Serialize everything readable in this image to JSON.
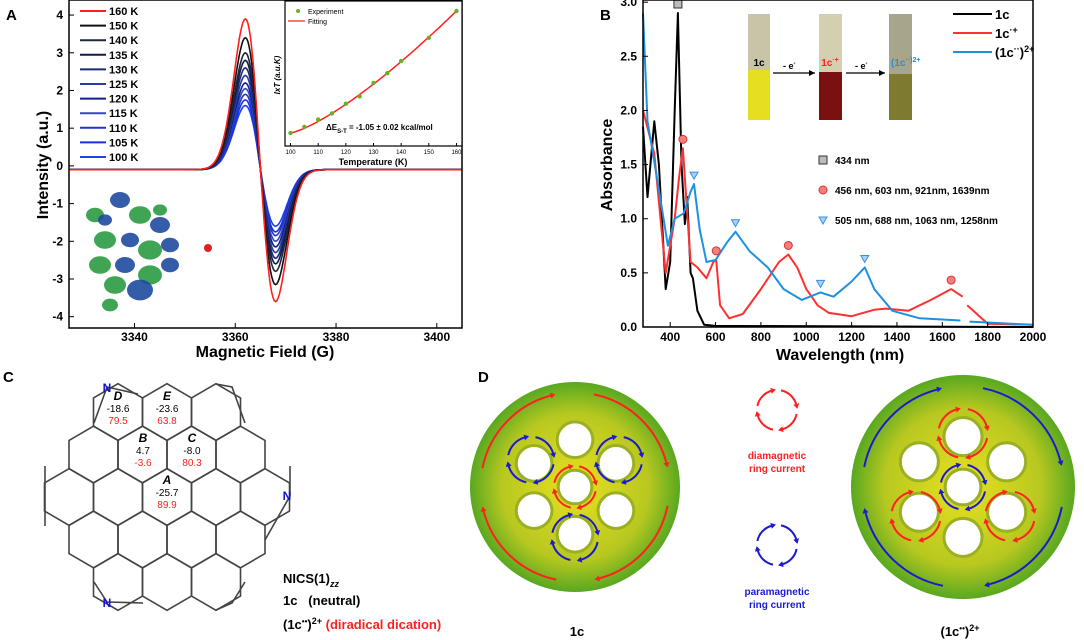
{
  "panels": {
    "a": "A",
    "b": "B",
    "c": "C",
    "d": "D"
  },
  "chart_data": [
    {
      "type": "line",
      "panel": "A",
      "xlabel": "Magnetic Field (G)",
      "ylabel": "Intensity (a.u.)",
      "xlim": [
        3327,
        3405
      ],
      "ylim": [
        -4.3,
        4.4
      ],
      "xticks": [
        3340,
        3360,
        3380,
        3400
      ],
      "yticks": [
        -4,
        -3,
        -2,
        -1,
        0,
        1,
        2,
        3,
        4
      ],
      "legend_position": "top-left",
      "center_field": 3365,
      "baseline": -0.1,
      "series": [
        {
          "name": "160 K",
          "peak": 3.9,
          "trough": -3.6,
          "color": "#ff2020"
        },
        {
          "name": "150 K",
          "peak": 3.4,
          "trough": -3.15,
          "color": "#101018"
        },
        {
          "name": "140 K",
          "peak": 3.0,
          "trough": -2.8,
          "color": "#22283a"
        },
        {
          "name": "135 K",
          "peak": 2.8,
          "trough": -2.6,
          "color": "#141a50"
        },
        {
          "name": "130 K",
          "peak": 2.6,
          "trough": -2.45,
          "color": "#1c2a78"
        },
        {
          "name": "125 K",
          "peak": 2.4,
          "trough": -2.3,
          "color": "#2a3c9a"
        },
        {
          "name": "120 K",
          "peak": 2.2,
          "trough": -2.15,
          "color": "#10208a"
        },
        {
          "name": "115 K",
          "peak": 2.05,
          "trough": -2.0,
          "color": "#3348c0"
        },
        {
          "name": "110 K",
          "peak": 1.9,
          "trough": -1.85,
          "color": "#2036c8"
        },
        {
          "name": "105 K",
          "peak": 1.75,
          "trough": -1.75,
          "color": "#1a30e0"
        },
        {
          "name": "100 K",
          "peak": 1.6,
          "trough": -1.6,
          "color": "#2040f0"
        }
      ]
    },
    {
      "type": "scatter",
      "panel": "A-inset",
      "xlabel": "Temperature (K)",
      "ylabel": "IxT (a.u.K)",
      "xlim": [
        98,
        162
      ],
      "xticks": [
        100,
        110,
        120,
        130,
        140,
        150,
        160
      ],
      "annotation": "ΔES-T = -1.05 ± 0.02 kcal/mol",
      "annotation_parts": {
        "delta": "ΔE",
        "sub": "S-T",
        "rest": " = -1.05 ± 0.02 kcal/mol"
      },
      "series": [
        {
          "name": "Experiment",
          "color": "#6ab023",
          "x": [
            100,
            105,
            110,
            115,
            120,
            125,
            130,
            135,
            140,
            150,
            160
          ],
          "y": [
            0,
            0.05,
            0.11,
            0.16,
            0.24,
            0.3,
            0.41,
            0.49,
            0.59,
            0.78,
            1.0
          ]
        },
        {
          "name": "Fitting",
          "color": "#ff2020"
        }
      ]
    },
    {
      "type": "line",
      "panel": "B",
      "xlabel": "Wavelength (nm)",
      "ylabel": "Absorbance",
      "xlim": [
        280,
        2000
      ],
      "ylim": [
        0,
        3.02
      ],
      "xticks": [
        400,
        600,
        800,
        1000,
        1200,
        1400,
        1600,
        1800,
        2000
      ],
      "yticks": [
        0.0,
        0.5,
        1.0,
        1.5,
        2.0,
        2.5,
        3.0
      ],
      "ytick_labels": [
        "0.0",
        "0.5",
        "1.0",
        "1.5",
        "2.0",
        "2.5",
        "3.0"
      ],
      "legend_position": "top-right",
      "series": [
        {
          "name": "1c",
          "color": "#000000",
          "marker": "square",
          "peaks": [
            434
          ],
          "peak_label": "434 nm",
          "points": [
            [
              280,
              1.85
            ],
            [
              300,
              1.2
            ],
            [
              330,
              1.9
            ],
            [
              350,
              1.5
            ],
            [
              380,
              0.35
            ],
            [
              400,
              0.6
            ],
            [
              420,
              2.0
            ],
            [
              434,
              2.9
            ],
            [
              450,
              1.5
            ],
            [
              465,
              0.95
            ],
            [
              475,
              1.2
            ],
            [
              490,
              0.5
            ],
            [
              500,
              0.45
            ],
            [
              520,
              0.15
            ],
            [
              550,
              0.02
            ],
            [
              600,
              0.01
            ],
            [
              2000,
              0.0
            ]
          ]
        },
        {
          "name": "1c·+",
          "color": "#ff3030",
          "marker": "circle",
          "peaks": [
            456,
            603,
            921,
            1639
          ],
          "peak_label": "456 nm, 603 nm, 921nm, 1639nm",
          "points": [
            [
              280,
              2.0
            ],
            [
              330,
              1.6
            ],
            [
              380,
              0.5
            ],
            [
              420,
              1.0
            ],
            [
              440,
              1.4
            ],
            [
              456,
              1.65
            ],
            [
              470,
              1.2
            ],
            [
              490,
              0.6
            ],
            [
              520,
              0.55
            ],
            [
              560,
              0.45
            ],
            [
              590,
              0.6
            ],
            [
              603,
              0.62
            ],
            [
              620,
              0.2
            ],
            [
              660,
              0.08
            ],
            [
              720,
              0.12
            ],
            [
              800,
              0.35
            ],
            [
              880,
              0.6
            ],
            [
              921,
              0.67
            ],
            [
              960,
              0.55
            ],
            [
              1000,
              0.35
            ],
            [
              1050,
              0.2
            ],
            [
              1100,
              0.13
            ],
            [
              1200,
              0.1
            ],
            [
              1300,
              0.16
            ],
            [
              1350,
              0.17
            ],
            [
              1450,
              0.15
            ],
            [
              1550,
              0.25
            ],
            [
              1639,
              0.35
            ],
            [
              1690,
              0.28
            ],
            null,
            [
              1710,
              0.2
            ],
            [
              1800,
              0.03
            ],
            [
              2000,
              0.02
            ]
          ]
        },
        {
          "name": "(1c··)2+",
          "color": "#1e90e0",
          "marker": "triangle",
          "peaks": [
            505,
            688,
            1063,
            1258
          ],
          "peak_label": "505 nm, 688 nm, 1063 nm, 1258nm",
          "points": [
            [
              280,
              2.9
            ],
            [
              300,
              1.9
            ],
            [
              340,
              1.4
            ],
            [
              390,
              0.75
            ],
            [
              420,
              1.0
            ],
            [
              460,
              1.05
            ],
            [
              490,
              1.25
            ],
            [
              505,
              1.32
            ],
            [
              530,
              0.9
            ],
            [
              560,
              0.6
            ],
            [
              600,
              0.62
            ],
            [
              650,
              0.78
            ],
            [
              688,
              0.88
            ],
            [
              750,
              0.7
            ],
            [
              830,
              0.55
            ],
            [
              900,
              0.35
            ],
            [
              980,
              0.25
            ],
            [
              1063,
              0.32
            ],
            [
              1120,
              0.28
            ],
            [
              1200,
              0.42
            ],
            [
              1258,
              0.55
            ],
            [
              1300,
              0.35
            ],
            [
              1380,
              0.15
            ],
            [
              1500,
              0.08
            ],
            [
              1680,
              0.06
            ],
            null,
            [
              1720,
              0.05
            ],
            [
              2000,
              0.02
            ]
          ]
        }
      ]
    }
  ],
  "legend_b": {
    "l1": "1c",
    "l2": "1c",
    "l2sup": "·+",
    "l3": "(1c",
    "l3sup1": "··",
    "l3mid": ")",
    "l3sup2": "2+"
  },
  "vials": {
    "v1": "1c",
    "v2": "1c",
    "v2sup": "·+",
    "v3": "(1c",
    "v3sup": "··)2+",
    "arrow": "- e",
    "arrow_sup": "-",
    "colors": [
      "#e6de20",
      "#7a1010",
      "#7e7a30"
    ]
  },
  "nics": {
    "rings": [
      {
        "label": "D",
        "neutral": "-18.6",
        "dication": "79.5"
      },
      {
        "label": "E",
        "neutral": "-23.6",
        "dication": "63.8"
      },
      {
        "label": "B",
        "neutral": "4.7",
        "dication": "-3.6"
      },
      {
        "label": "C",
        "neutral": "-8.0",
        "dication": "80.3"
      },
      {
        "label": "A",
        "neutral": "-25.7",
        "dication": "89.9"
      }
    ],
    "nitrogen": "N",
    "title": "NICS(1)",
    "title_sub": "zz",
    "neutral_label": "1c   (neutral)",
    "dication_label": "(1c",
    "dication_sup1": "••",
    "dication_mid": ")",
    "dication_sup2": "2+",
    "dication_desc": " (diradical dication)",
    "colors": {
      "neutral": "#000000",
      "dication": "#ff2020",
      "nitrogen": "#1010e0"
    }
  },
  "currents": {
    "dia1": "diamagnetic",
    "dia2": "ring current",
    "para1": "paramagnetic",
    "para2": "ring current",
    "left_label": "1c",
    "right_label": "(1c",
    "right_sup1": "••",
    "right_mid": ")",
    "right_sup2": "2+",
    "colors": {
      "dia": "#ff2020",
      "para": "#1a1ad0"
    }
  }
}
